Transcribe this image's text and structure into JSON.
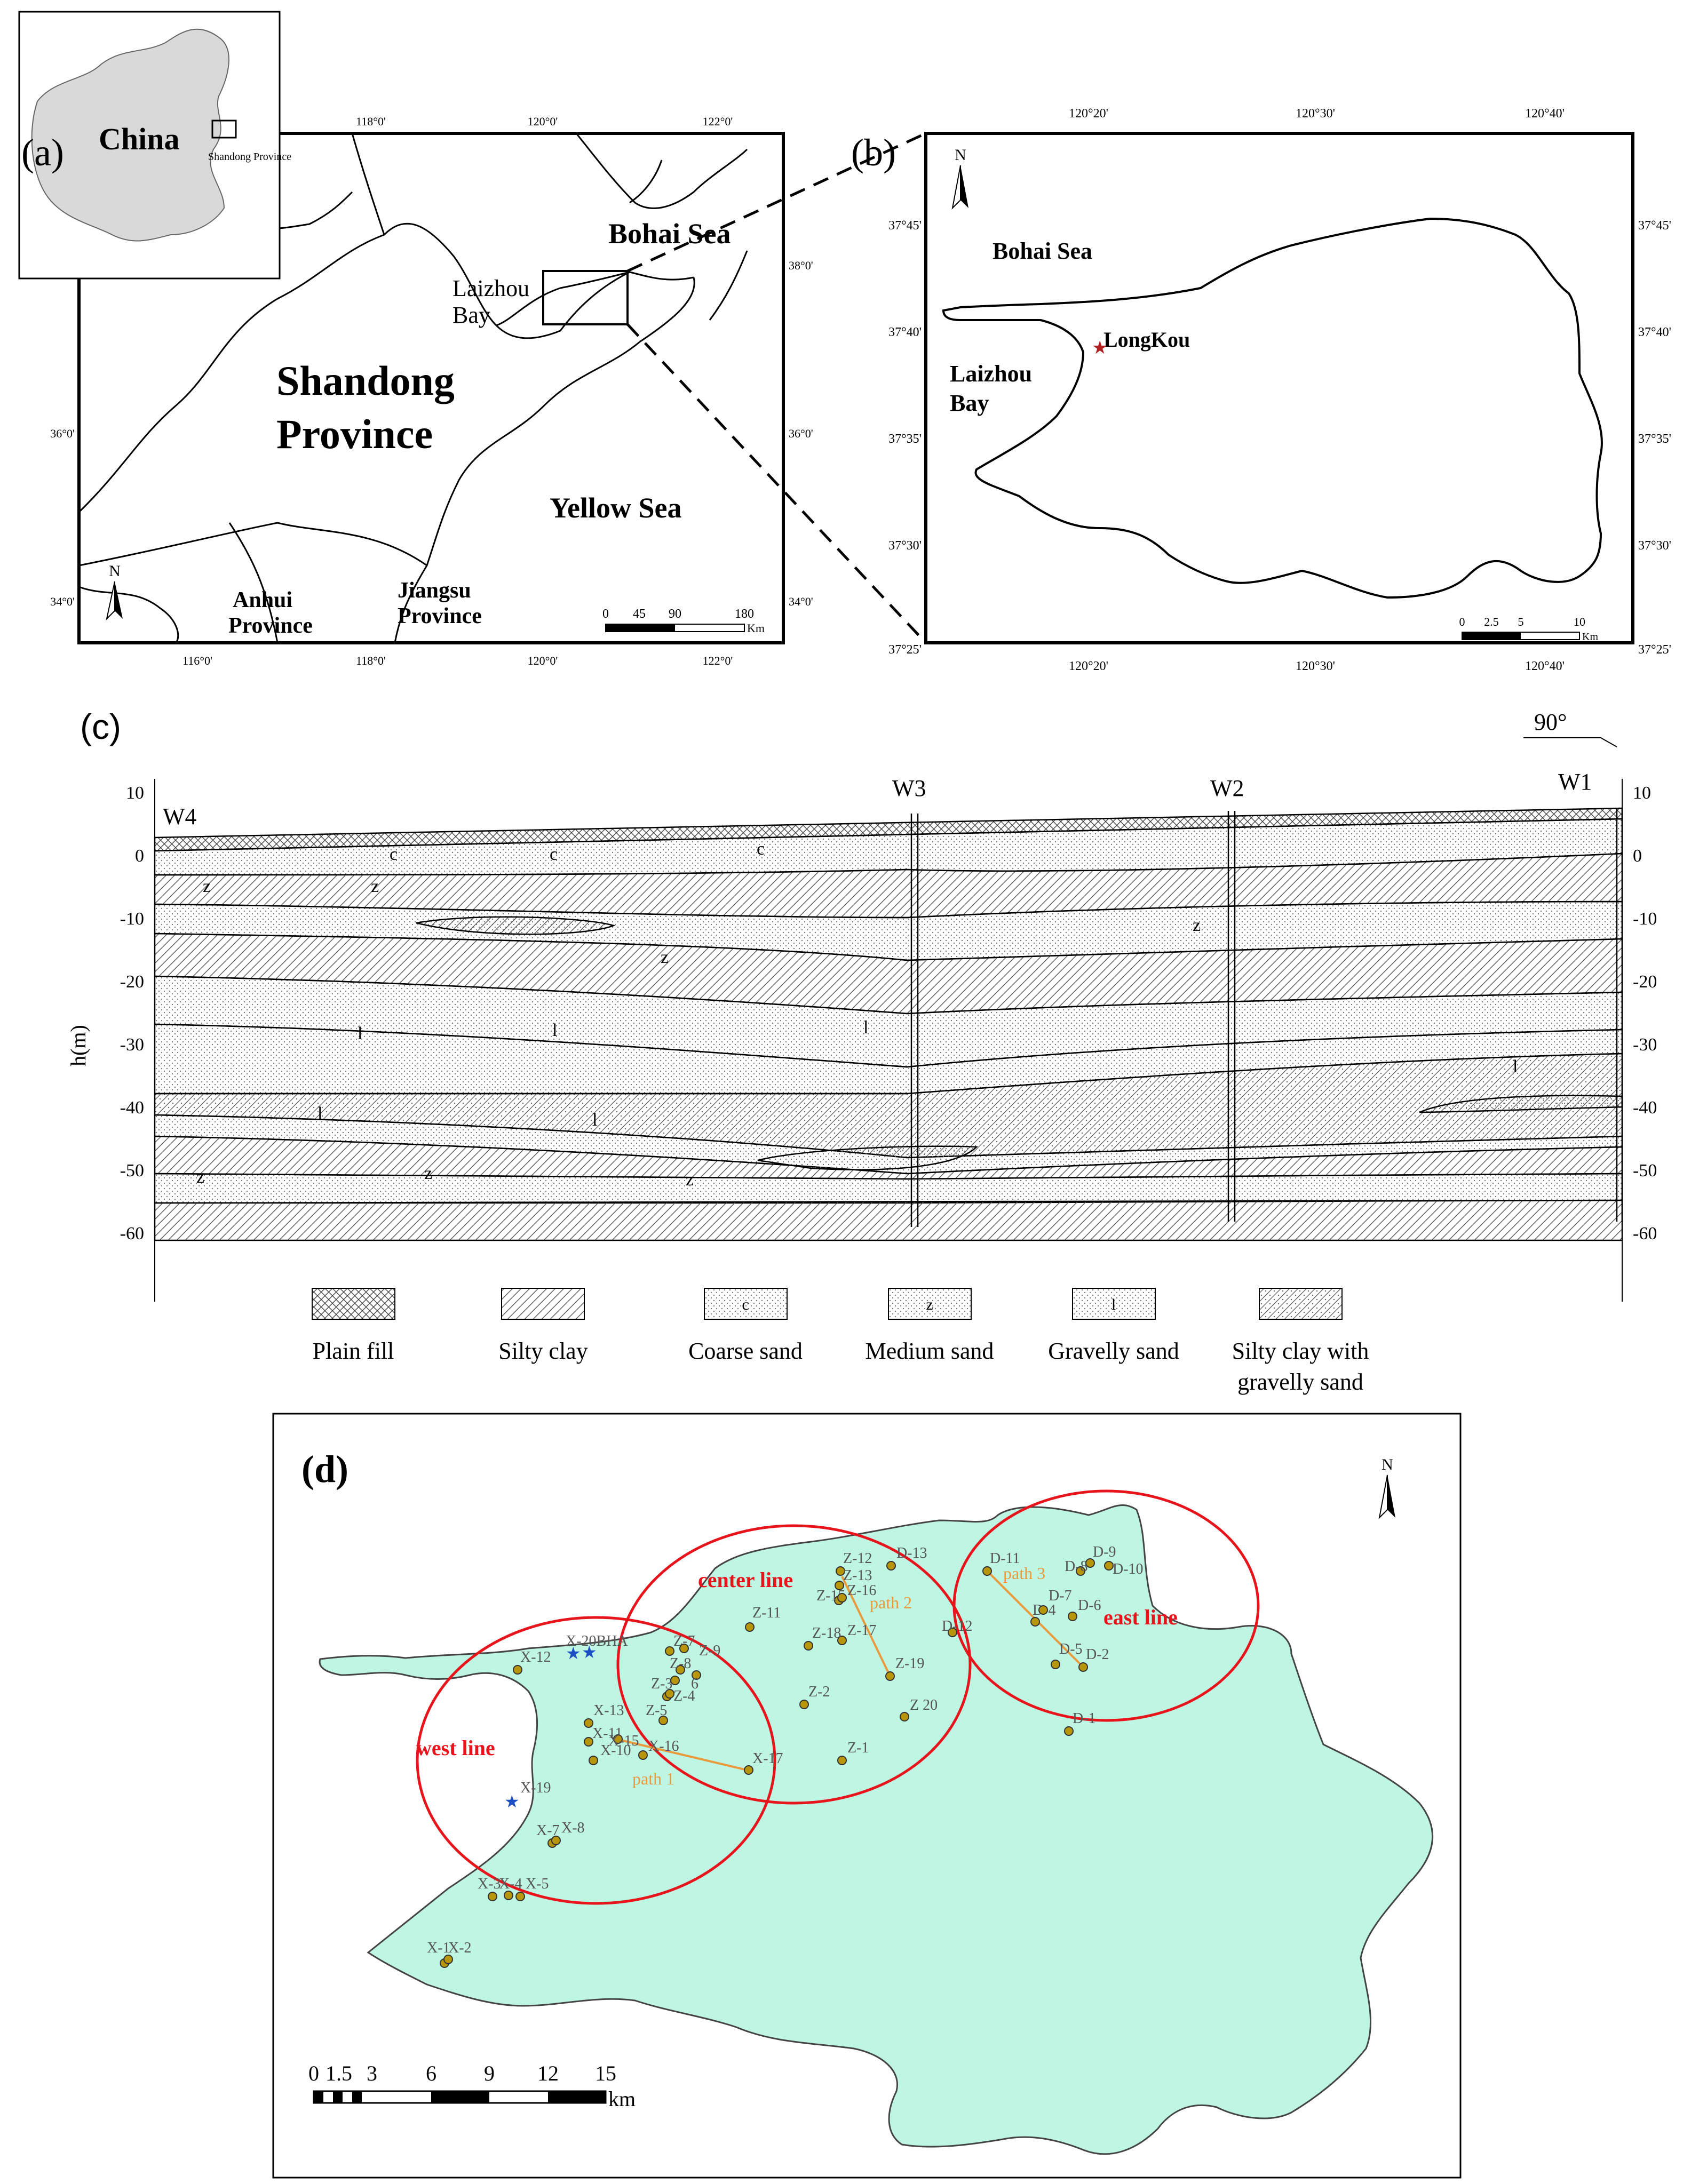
{
  "panel_a": {
    "label": "(a)",
    "inset": {
      "country": "China",
      "province_note": "Shandong Province"
    },
    "lon_ticks": [
      "116°0'",
      "118°0'",
      "120°0'",
      "122°0'"
    ],
    "lat_ticks": [
      "34°0'",
      "36°0'",
      "38°0'"
    ],
    "labels": {
      "bohai": "Bohai Sea",
      "laizhou_1": "Laizhou",
      "laizhou_2": "Bay",
      "shandong_1": "Shandong",
      "shandong_2": "Province",
      "yellow": "Yellow Sea",
      "anhui_1": "Anhui",
      "anhui_2": "Province",
      "jiangsu_1": "Jiangsu",
      "jiangsu_2": "Province"
    },
    "north": "N",
    "scale": {
      "ticks": [
        "0",
        "45",
        "90",
        "180"
      ],
      "unit": "Km"
    }
  },
  "panel_b": {
    "label": "(b)",
    "lon_ticks": [
      "120°20'",
      "120°30'",
      "120°40'"
    ],
    "lat_ticks": [
      "37°45'",
      "37°40'",
      "37°35'",
      "37°30'",
      "37°25'"
    ],
    "labels": {
      "bohai": "Bohai Sea",
      "city": "LongKou",
      "laizhou_1": "Laizhou",
      "laizhou_2": "Bay"
    },
    "north": "N",
    "scale": {
      "ticks": [
        "0",
        "2.5",
        "5",
        "10"
      ],
      "unit": "Km"
    }
  },
  "panel_c": {
    "label": "(c)",
    "direction": "90°",
    "ylabel": "h(m)",
    "y_ticks": [
      "10",
      "0",
      "-10",
      "-20",
      "-30",
      "-40",
      "-50",
      "-60"
    ],
    "wells": [
      "W4",
      "W3",
      "W2",
      "W1"
    ],
    "layer_marks": {
      "c": "c",
      "z": "z",
      "l": "l"
    },
    "legend": [
      {
        "line1": "Plain fill",
        "line2": "",
        "pattern": "crosshatch",
        "mark": ""
      },
      {
        "line1": "Silty clay",
        "line2": "",
        "pattern": "diagonal",
        "mark": ""
      },
      {
        "line1": "Coarse sand",
        "line2": "",
        "pattern": "dots",
        "mark": "c"
      },
      {
        "line1": "Medium sand",
        "line2": "",
        "pattern": "dots",
        "mark": "z"
      },
      {
        "line1": "Gravelly sand",
        "line2": "",
        "pattern": "dots",
        "mark": "l"
      },
      {
        "line1": "Silty clay with",
        "line2": "gravelly sand",
        "pattern": "diagdots",
        "mark": ""
      }
    ]
  },
  "panel_d": {
    "label": "(d)",
    "north": "N",
    "zones": {
      "west": "west line",
      "center": "center line",
      "east": "east line"
    },
    "paths": {
      "p1": "path 1",
      "p2": "path 2",
      "p3": "path 3"
    },
    "bha": "X-20BHA",
    "x19": "X-19",
    "scale": {
      "ticks": [
        "0",
        "1.5",
        "3",
        "6",
        "9",
        "12",
        "15"
      ],
      "unit": "km"
    },
    "colors": {
      "land": "#bff5e3",
      "zone": "#e8141c",
      "path": "#e99a3c",
      "well": "#b8960c",
      "star": "#1d4fc4"
    },
    "wells": {
      "X-1": "X-1",
      "X-2": "X-2",
      "X-3": "X-3",
      "X-4": "X-4",
      "X-5": "X-5",
      "X-7": "X-7",
      "X-8": "X-8",
      "X-10": "X-10",
      "X-11": "X-11",
      "X-12": "X-12",
      "X-13": "X-13",
      "X-15": "X-15",
      "X-16": "X-16",
      "X-17": "X-17",
      "Z-1": "Z-1",
      "Z-2": "Z-2",
      "Z-3": "Z-3",
      "Z-4": "Z-4",
      "Z-5": "Z-5",
      "Z-6": "6",
      "Z-7": "Z-7",
      "Z-8": "Z-8",
      "Z-9": "Z-9",
      "Z-11": "Z-11",
      "Z-12": "Z-12",
      "Z-13": "Z-13",
      "Z-15": "Z-15",
      "Z-16": "Z-16",
      "Z-17": "Z-17",
      "Z-18": "Z-18",
      "Z-19": "Z-19",
      "Z-20": "Z 20",
      "D-1": "D-1",
      "D-2": "D-2",
      "D-4": "D-4",
      "D-5": "D-5",
      "D-6": "D-6",
      "D-7": "D-7",
      "D-8": "D-8",
      "D-9": "D-9",
      "D-10": "D-10",
      "D-11": "D-11",
      "D-12": "D-12",
      "D-13": "D-13"
    }
  }
}
